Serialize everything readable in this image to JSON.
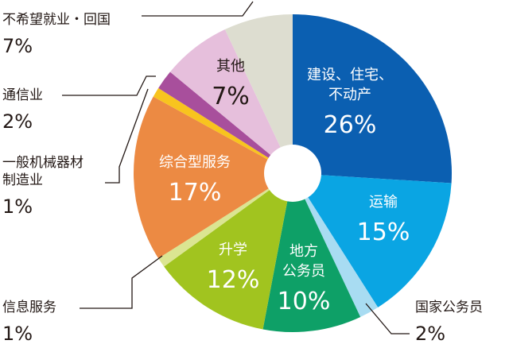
{
  "chart_data": {
    "type": "pie",
    "variant": "donut",
    "start": "12 o'clock",
    "direction": "clockwise",
    "slices": [
      {
        "id": "construction",
        "lines": [
          "建设、住宅、",
          "不动产"
        ],
        "pct": "26%",
        "value": 26,
        "color": "#0b5fb1",
        "label_color": "#ffffff"
      },
      {
        "id": "transport",
        "lines": [
          "运输"
        ],
        "pct": "15%",
        "value": 15,
        "color": "#0aa5e3",
        "label_color": "#ffffff"
      },
      {
        "id": "national-civil-servant",
        "lines": [
          "国家公务员"
        ],
        "pct": "2%",
        "value": 2,
        "color": "#a8dcf2",
        "label_color": "#231815"
      },
      {
        "id": "local-civil-servant",
        "lines": [
          "地方",
          "公务员"
        ],
        "pct": "10%",
        "value": 10,
        "color": "#0ea067",
        "label_color": "#ffffff"
      },
      {
        "id": "further-study",
        "lines": [
          "升学"
        ],
        "pct": "12%",
        "value": 12,
        "color": "#a1c41f",
        "label_color": "#ffffff"
      },
      {
        "id": "info-services",
        "lines": [
          "信息服务"
        ],
        "pct": "1%",
        "value": 1,
        "color": "#dbe592",
        "label_color": "#231815"
      },
      {
        "id": "integrated-services",
        "lines": [
          "综合型服务"
        ],
        "pct": "17%",
        "value": 17,
        "color": "#ec8a43",
        "label_color": "#ffffff"
      },
      {
        "id": "machinery",
        "lines": [
          "一般机械器材",
          "制造业"
        ],
        "pct": "1%",
        "value": 1,
        "color": "#f8c41e",
        "label_color": "#231815"
      },
      {
        "id": "telecom",
        "lines": [
          "通信业"
        ],
        "pct": "2%",
        "value": 2,
        "color": "#a84f9c",
        "label_color": "#231815"
      },
      {
        "id": "other",
        "lines": [
          "其他"
        ],
        "pct": "7%",
        "value": 7,
        "color": "#e6bfdc",
        "label_color": "#231815"
      },
      {
        "id": "no-job-return",
        "lines": [
          "不希望就业・回国"
        ],
        "pct": "7%",
        "value": 7,
        "color": "#ddddd0",
        "label_color": "#231815"
      }
    ]
  }
}
